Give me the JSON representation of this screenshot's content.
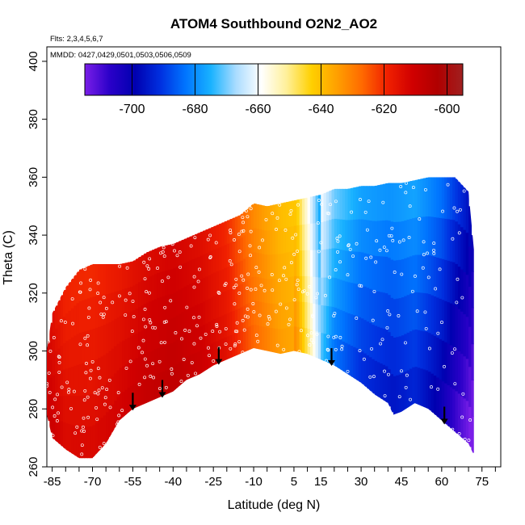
{
  "chart_data": {
    "type": "heatmap",
    "title": "ATOM4 Southbound O2N2_AO2",
    "flights_note": "Flts: 2,3,4,5,6,7",
    "dates_note": "MMDD: 0427,0429,0501,0503,0506,0509",
    "xlabel": "Latitude (deg N)",
    "ylabel": "Theta (C)",
    "xlim": [
      -87,
      82
    ],
    "ylim": [
      260,
      405
    ],
    "x_tick_labels": [
      -85,
      -70,
      -55,
      -40,
      -25,
      -10,
      5,
      15,
      30,
      45,
      60,
      75
    ],
    "x_minor_ticks": [
      -85,
      -80,
      -75,
      -70,
      -65,
      -60,
      -55,
      -50,
      -45,
      -40,
      -35,
      -30,
      -25,
      -20,
      -15,
      -10,
      -5,
      0,
      5,
      10,
      15,
      20,
      25,
      30,
      35,
      40,
      45,
      50,
      55,
      60,
      65,
      70,
      75,
      80
    ],
    "y_tick_labels": [
      260,
      280,
      300,
      320,
      340,
      360,
      380,
      400
    ],
    "colorbar": {
      "min": -715,
      "max": -595,
      "tick_labels": [
        -700,
        -680,
        -660,
        -640,
        -620,
        -600
      ],
      "colors": [
        "#7a1ee8",
        "#2a00c8",
        "#0000b0",
        "#0030e0",
        "#0075ff",
        "#19b2ff",
        "#aadcff",
        "#ffffff",
        "#fff09a",
        "#ffd000",
        "#ffa000",
        "#ff6a00",
        "#f02000",
        "#d00000",
        "#b00000",
        "#a02020"
      ]
    },
    "lower_boundary": [
      [
        -87,
        278
      ],
      [
        -85,
        270
      ],
      [
        -80,
        266
      ],
      [
        -75,
        263
      ],
      [
        -70,
        263
      ],
      [
        -65,
        268
      ],
      [
        -60,
        276
      ],
      [
        -55,
        280
      ],
      [
        -50,
        282
      ],
      [
        -45,
        284
      ],
      [
        -40,
        286
      ],
      [
        -35,
        290
      ],
      [
        -30,
        292
      ],
      [
        -25,
        295
      ],
      [
        -20,
        297
      ],
      [
        -15,
        299
      ],
      [
        -10,
        301
      ],
      [
        -5,
        300
      ],
      [
        0,
        299
      ],
      [
        5,
        300
      ],
      [
        10,
        299
      ],
      [
        15,
        297
      ],
      [
        20,
        295
      ],
      [
        25,
        292
      ],
      [
        30,
        289
      ],
      [
        35,
        285
      ],
      [
        40,
        282
      ],
      [
        42,
        278
      ],
      [
        45,
        279
      ],
      [
        50,
        282
      ],
      [
        55,
        280
      ],
      [
        60,
        276
      ],
      [
        65,
        272
      ],
      [
        70,
        268
      ],
      [
        72,
        264
      ]
    ],
    "upper_boundary": [
      [
        -87,
        300
      ],
      [
        -85,
        313
      ],
      [
        -80,
        322
      ],
      [
        -75,
        328
      ],
      [
        -70,
        330
      ],
      [
        -65,
        330
      ],
      [
        -60,
        330
      ],
      [
        -55,
        331
      ],
      [
        -50,
        334
      ],
      [
        -45,
        336
      ],
      [
        -40,
        337
      ],
      [
        -35,
        339
      ],
      [
        -30,
        341
      ],
      [
        -25,
        343
      ],
      [
        -20,
        345
      ],
      [
        -15,
        347
      ],
      [
        -10,
        351
      ],
      [
        -5,
        350
      ],
      [
        0,
        351
      ],
      [
        5,
        352
      ],
      [
        10,
        353
      ],
      [
        15,
        354
      ],
      [
        20,
        356
      ],
      [
        25,
        356
      ],
      [
        30,
        357
      ],
      [
        35,
        357
      ],
      [
        40,
        358
      ],
      [
        45,
        358
      ],
      [
        50,
        359
      ],
      [
        55,
        360
      ],
      [
        60,
        360
      ],
      [
        65,
        360
      ],
      [
        70,
        355
      ],
      [
        72,
        335
      ]
    ],
    "value_field_profile": [
      [
        -87,
        -612
      ],
      [
        -80,
        -617
      ],
      [
        -70,
        -617
      ],
      [
        -60,
        -614
      ],
      [
        -50,
        -610
      ],
      [
        -40,
        -608
      ],
      [
        -30,
        -610
      ],
      [
        -20,
        -615
      ],
      [
        -10,
        -626
      ],
      [
        0,
        -634
      ],
      [
        6,
        -636
      ],
      [
        11,
        -655
      ],
      [
        15,
        -672
      ],
      [
        20,
        -683
      ],
      [
        30,
        -690
      ],
      [
        40,
        -692
      ],
      [
        50,
        -690
      ],
      [
        60,
        -697
      ],
      [
        65,
        -703
      ],
      [
        72,
        -710
      ]
    ],
    "arrows": [
      -55,
      -44,
      -23,
      19,
      61
    ]
  }
}
